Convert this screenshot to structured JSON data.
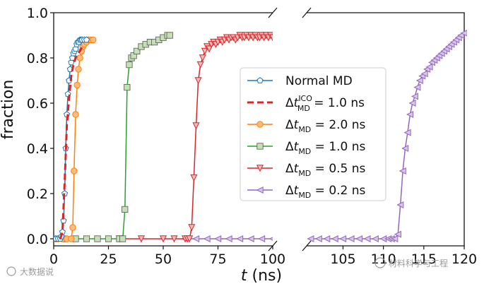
{
  "chart_data": {
    "type": "line",
    "xlabel": "t (ns)",
    "ylabel": "fraction",
    "ylim": [
      0.0,
      1.0
    ],
    "yticks": [
      "0.0",
      "0.2",
      "0.4",
      "0.6",
      "0.8",
      "1.0"
    ],
    "xticks_left": [
      "0",
      "25",
      "50",
      "75",
      "100"
    ],
    "xticks_right": [
      "105",
      "110",
      "115",
      "120"
    ],
    "x_segments": [
      [
        0,
        100
      ],
      [
        100.5,
        120
      ]
    ],
    "series": [
      {
        "name": "Normal MD",
        "label_text": "Normal MD",
        "color": "#1f77b4",
        "marker": "pentagon",
        "points": [
          [
            0,
            0
          ],
          [
            1,
            0
          ],
          [
            2,
            0
          ],
          [
            3,
            0
          ],
          [
            3.5,
            0.01
          ],
          [
            4,
            0.03
          ],
          [
            4.5,
            0.08
          ],
          [
            5,
            0.2
          ],
          [
            5.5,
            0.4
          ],
          [
            6,
            0.55
          ],
          [
            6.5,
            0.64
          ],
          [
            7,
            0.7
          ],
          [
            7.5,
            0.75
          ],
          [
            8,
            0.78
          ],
          [
            8.5,
            0.8
          ],
          [
            9,
            0.82
          ],
          [
            9.5,
            0.83
          ],
          [
            10,
            0.84
          ],
          [
            10.5,
            0.86
          ],
          [
            11,
            0.87
          ],
          [
            11.5,
            0.87
          ],
          [
            12,
            0.88
          ],
          [
            12.5,
            0.88
          ],
          [
            13,
            0.88
          ],
          [
            14,
            0.88
          ],
          [
            15,
            0.88
          ]
        ]
      },
      {
        "name": "ICO 1.0 ns",
        "label_parts": {
          "prefix": "Δt",
          "sub": "MD",
          "sup": "ICO",
          "suffix": " = 1.0 ns"
        },
        "color": "#d62728",
        "marker": "dashed",
        "points": [
          [
            3,
            0
          ],
          [
            4,
            0.03
          ],
          [
            5,
            0.25
          ],
          [
            6,
            0.5
          ],
          [
            7,
            0.62
          ],
          [
            8,
            0.72
          ],
          [
            9,
            0.77
          ],
          [
            10,
            0.8
          ],
          [
            11,
            0.82
          ],
          [
            12,
            0.83
          ],
          [
            13,
            0.85
          ]
        ]
      },
      {
        "name": "2.0 ns",
        "label_parts": {
          "prefix": "Δt",
          "sub": "MD",
          "sup": "",
          "suffix": " = 2.0 ns"
        },
        "color": "#ff7f0e",
        "marker": "circle",
        "points": [
          [
            0,
            0
          ],
          [
            2,
            0
          ],
          [
            4,
            0
          ],
          [
            6,
            0
          ],
          [
            8,
            0
          ],
          [
            8.7,
            0.05
          ],
          [
            9.3,
            0.3
          ],
          [
            10,
            0.55
          ],
          [
            10.7,
            0.68
          ],
          [
            11.3,
            0.75
          ],
          [
            12,
            0.8
          ],
          [
            12.7,
            0.83
          ],
          [
            13.3,
            0.85
          ],
          [
            14,
            0.86
          ],
          [
            15,
            0.87
          ],
          [
            16,
            0.88
          ],
          [
            17,
            0.88
          ],
          [
            18,
            0.88
          ]
        ]
      },
      {
        "name": "1.0 ns",
        "label_parts": {
          "prefix": "Δt",
          "sub": "MD",
          "sup": "",
          "suffix": " = 1.0 ns"
        },
        "color": "#2ca02c",
        "marker": "square",
        "points": [
          [
            0,
            0
          ],
          [
            5,
            0
          ],
          [
            10,
            0
          ],
          [
            15,
            0
          ],
          [
            20,
            0
          ],
          [
            25,
            0
          ],
          [
            30,
            0
          ],
          [
            31.5,
            0
          ],
          [
            32.5,
            0.13
          ],
          [
            33.5,
            0.67
          ],
          [
            34.5,
            0.77
          ],
          [
            35.5,
            0.8
          ],
          [
            36.5,
            0.81
          ],
          [
            38,
            0.83
          ],
          [
            40,
            0.85
          ],
          [
            42,
            0.86
          ],
          [
            44,
            0.87
          ],
          [
            46,
            0.87
          ],
          [
            48,
            0.88
          ],
          [
            50,
            0.89
          ],
          [
            52,
            0.9
          ],
          [
            53,
            0.9
          ]
        ]
      },
      {
        "name": "0.5 ns",
        "label_parts": {
          "prefix": "Δt",
          "sub": "MD",
          "sup": "",
          "suffix": " = 0.5 ns"
        },
        "color": "#d62728",
        "marker": "triangle-down",
        "points": [
          [
            30,
            0
          ],
          [
            40,
            0
          ],
          [
            50,
            0
          ],
          [
            55,
            0
          ],
          [
            60,
            0
          ],
          [
            61,
            0
          ],
          [
            62,
            0
          ],
          [
            63,
            0.05
          ],
          [
            64,
            0.27
          ],
          [
            65,
            0.5
          ],
          [
            66,
            0.7
          ],
          [
            67,
            0.77
          ],
          [
            68,
            0.8
          ],
          [
            69,
            0.83
          ],
          [
            70,
            0.85
          ],
          [
            71,
            0.84
          ],
          [
            72,
            0.86
          ],
          [
            73,
            0.87
          ],
          [
            74,
            0.86
          ],
          [
            75,
            0.87
          ],
          [
            76,
            0.88
          ],
          [
            77,
            0.87
          ],
          [
            78,
            0.88
          ],
          [
            79,
            0.89
          ],
          [
            80,
            0.88
          ],
          [
            81,
            0.89
          ],
          [
            82,
            0.89
          ],
          [
            83,
            0.88
          ],
          [
            84,
            0.89
          ],
          [
            85,
            0.9
          ],
          [
            86,
            0.89
          ],
          [
            87,
            0.89
          ],
          [
            88,
            0.9
          ],
          [
            89,
            0.89
          ],
          [
            90,
            0.9
          ],
          [
            91,
            0.89
          ],
          [
            92,
            0.9
          ],
          [
            93,
            0.89
          ],
          [
            94,
            0.89
          ],
          [
            95,
            0.9
          ],
          [
            96,
            0.89
          ],
          [
            97,
            0.9
          ],
          [
            98,
            0.89
          ],
          [
            99,
            0.9
          ],
          [
            100,
            0.89
          ]
        ]
      },
      {
        "name": "0.2 ns",
        "label_parts": {
          "prefix": "Δt",
          "sub": "MD",
          "sup": "",
          "suffix": " = 0.2 ns"
        },
        "color": "#9467bd",
        "marker": "triangle-left",
        "points": [
          [
            60,
            0
          ],
          [
            65,
            0
          ],
          [
            70,
            0
          ],
          [
            75,
            0
          ],
          [
            80,
            0
          ],
          [
            85,
            0
          ],
          [
            90,
            0
          ],
          [
            95,
            0
          ],
          [
            100,
            0
          ],
          [
            101,
            0
          ],
          [
            102,
            0
          ],
          [
            103,
            0
          ],
          [
            104,
            0
          ],
          [
            105,
            0
          ],
          [
            106,
            0
          ],
          [
            107,
            0
          ],
          [
            108,
            0
          ],
          [
            109,
            0
          ],
          [
            110,
            0
          ],
          [
            110.6,
            0
          ],
          [
            111,
            0
          ],
          [
            111.4,
            0
          ],
          [
            111.8,
            0.02
          ],
          [
            112.1,
            0.15
          ],
          [
            112.4,
            0.3
          ],
          [
            112.7,
            0.4
          ],
          [
            113,
            0.47
          ],
          [
            113.3,
            0.55
          ],
          [
            113.6,
            0.6
          ],
          [
            113.9,
            0.63
          ],
          [
            114.2,
            0.67
          ],
          [
            114.5,
            0.7
          ],
          [
            114.8,
            0.72
          ],
          [
            115.1,
            0.73
          ],
          [
            115.4,
            0.75
          ],
          [
            115.7,
            0.76
          ],
          [
            116,
            0.78
          ],
          [
            116.3,
            0.79
          ],
          [
            116.6,
            0.8
          ],
          [
            116.9,
            0.81
          ],
          [
            117.2,
            0.82
          ],
          [
            117.5,
            0.83
          ],
          [
            117.8,
            0.84
          ],
          [
            118.1,
            0.85
          ],
          [
            118.4,
            0.86
          ],
          [
            118.7,
            0.87
          ],
          [
            119,
            0.88
          ],
          [
            119.3,
            0.89
          ],
          [
            119.6,
            0.9
          ],
          [
            120,
            0.91
          ]
        ]
      }
    ],
    "legend_position": "center-right"
  },
  "watermarks": {
    "left": "大数据说",
    "right": "材料科学与工程"
  }
}
